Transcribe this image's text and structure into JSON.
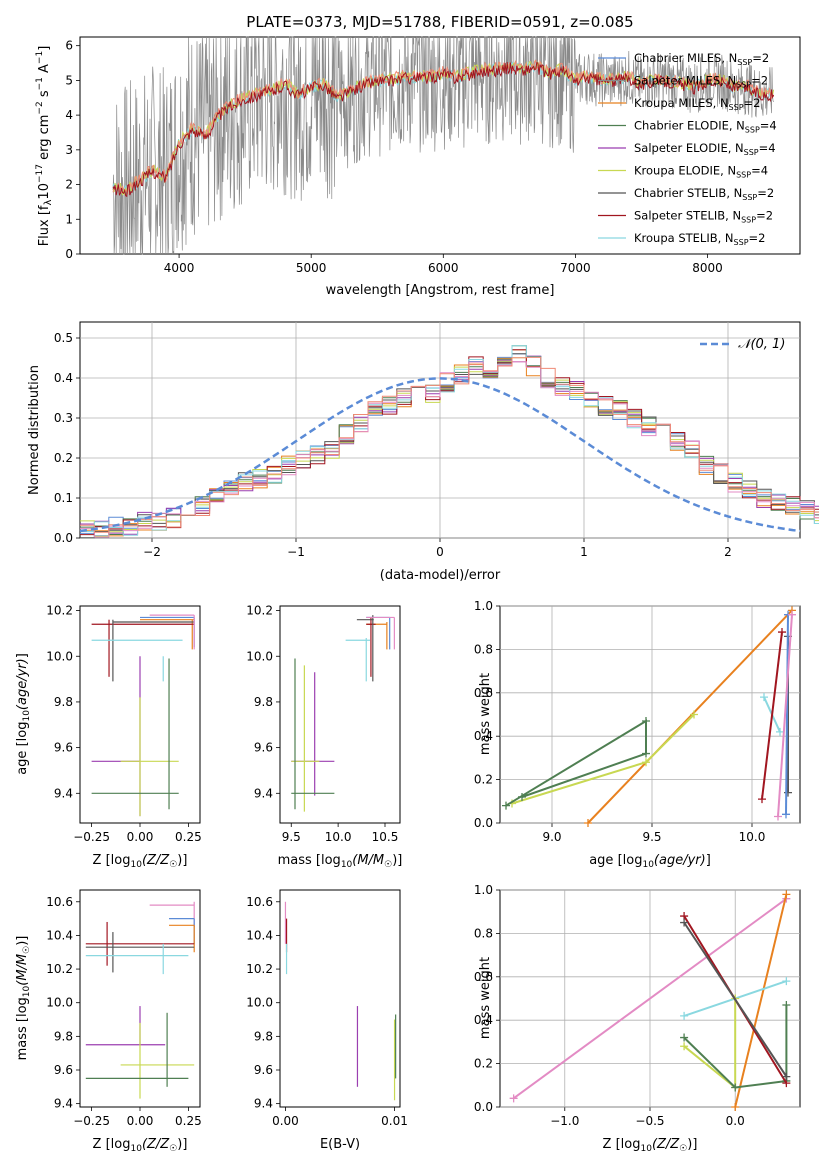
{
  "figure": {
    "title": "PLATE=0373, MJD=51788, FIBERID=0591, z=0.085"
  },
  "colors": {
    "chabrier_miles": "#5b8bd6",
    "salpeter_miles": "#8a8a8a",
    "kroupa_miles": "#e8811f",
    "chabrier_elodie": "#4f7f52",
    "salpeter_elodie": "#9b3fb0",
    "kroupa_elodie": "#c8d852",
    "chabrier_stelib": "#555555",
    "salpeter_stelib": "#a11620",
    "kroupa_stelib": "#8ad8e0",
    "pink": "#e38bc4",
    "salmon": "#ef8a75",
    "normal": "#5b8bd6"
  },
  "chart_data": [
    {
      "id": "spectrum",
      "type": "line",
      "title": "PLATE=0373, MJD=51788, FIBERID=0591, z=0.085",
      "xlabel": "wavelength [Angstrom, rest frame]",
      "ylabel": "Flux [f_λ 10^-17 erg cm^-2 s^-1 A^-1]",
      "xlim": [
        3250,
        8700
      ],
      "ylim": [
        0,
        6.25
      ],
      "xticks": [
        "4000",
        "5000",
        "6000",
        "7000",
        "8000"
      ],
      "yticks": [
        "0",
        "1",
        "2",
        "3",
        "4",
        "5",
        "6"
      ],
      "legend_position": "right",
      "legend": [
        "Chabrier MILES, N_SSP=2",
        "Salpeter MILES, N_SSP=2",
        "Kroupa MILES, N_SSP=2",
        "Chabrier ELODIE, N_SSP=4",
        "Salpeter ELODIE, N_SSP=4",
        "Kroupa ELODIE, N_SSP=4",
        "Chabrier STELIB, N_SSP=2",
        "Salpeter STELIB, N_SSP=2",
        "Kroupa STELIB, N_SSP=2"
      ],
      "data_range_x": [
        3500,
        8500
      ],
      "model_curve": {
        "x": [
          3500,
          3600,
          3700,
          3800,
          3900,
          4000,
          4100,
          4200,
          4300,
          4400,
          4500,
          4600,
          4700,
          4800,
          4900,
          5000,
          5100,
          5200,
          5300,
          5400,
          5500,
          5600,
          5700,
          5800,
          5900,
          6000,
          6100,
          6200,
          6300,
          6400,
          6500,
          6600,
          6700,
          6800,
          6900,
          7000,
          7100,
          7200,
          7300,
          7400,
          7500,
          7600,
          7700,
          7800,
          7900,
          8000,
          8100,
          8200,
          8300,
          8400
        ],
        "y": [
          1.9,
          1.8,
          2.1,
          2.4,
          2.2,
          3.2,
          3.6,
          3.4,
          4.0,
          4.3,
          4.5,
          4.6,
          4.7,
          4.9,
          4.6,
          4.8,
          4.9,
          4.5,
          4.7,
          4.9,
          5.0,
          5.0,
          5.1,
          5.1,
          5.1,
          5.2,
          5.1,
          5.2,
          5.3,
          5.3,
          5.4,
          5.3,
          5.4,
          5.2,
          5.3,
          5.0,
          5.1,
          5.0,
          5.0,
          5.1,
          4.9,
          5.0,
          5.0,
          4.9,
          4.8,
          5.0,
          5.0,
          4.8,
          4.8,
          4.6
        ]
      }
    },
    {
      "id": "residuals",
      "type": "histogram",
      "xlabel": "(data-model)/error",
      "ylabel": "Normed distribution",
      "xlim": [
        -2.5,
        2.5
      ],
      "ylim": [
        0,
        0.54
      ],
      "xticks": [
        "−2",
        "−1",
        "0",
        "1",
        "2"
      ],
      "yticks": [
        "0.0",
        "0.1",
        "0.2",
        "0.3",
        "0.4",
        "0.5"
      ],
      "grid": true,
      "legend_position": "top-right",
      "legend": [
        "𝒩(0, 1)"
      ],
      "bin_width": 0.1,
      "bin_start": -2.5,
      "hist_values": [
        0.02,
        0.02,
        0.03,
        0.03,
        0.04,
        0.04,
        0.05,
        0.06,
        0.08,
        0.1,
        0.12,
        0.14,
        0.15,
        0.16,
        0.18,
        0.2,
        0.21,
        0.22,
        0.26,
        0.29,
        0.32,
        0.33,
        0.35,
        0.37,
        0.36,
        0.39,
        0.41,
        0.43,
        0.42,
        0.44,
        0.46,
        0.43,
        0.4,
        0.38,
        0.37,
        0.35,
        0.33,
        0.32,
        0.3,
        0.28,
        0.26,
        0.24,
        0.22,
        0.18,
        0.16,
        0.14,
        0.12,
        0.1,
        0.09,
        0.08,
        0.07,
        0.06,
        0.06,
        0.05,
        0.04,
        0.04,
        0.03,
        0.03,
        0.03,
        0.02
      ]
    },
    {
      "id": "age_vs_Z",
      "type": "scatter",
      "xlabel": "Z [log10(Z/Z☉)]",
      "ylabel": "age [log10(age/yr)]",
      "xlim": [
        -0.31,
        0.31
      ],
      "ylim": [
        9.27,
        10.22
      ],
      "xticks": [
        "−0.25",
        "0.00",
        "0.25"
      ],
      "yticks": [
        "9.4",
        "9.6",
        "9.8",
        "10.0",
        "10.2"
      ]
    },
    {
      "id": "age_vs_mass",
      "type": "scatter",
      "xlabel": "mass [log10(M/M☉)]",
      "ylabel": "",
      "xlim": [
        9.38,
        10.66
      ],
      "ylim": [
        9.27,
        10.22
      ],
      "xticks": [
        "9.5",
        "10.0",
        "10.5"
      ],
      "yticks": [
        "9.4",
        "9.6",
        "9.8",
        "10.0",
        "10.2"
      ]
    },
    {
      "id": "weight_vs_age",
      "type": "line",
      "xlabel": "age [log10(age/yr)]",
      "ylabel": "mass weight",
      "xlim": [
        8.74,
        10.24
      ],
      "ylim": [
        0,
        1.0
      ],
      "xticks": [
        "9.0",
        "9.5",
        "10.0"
      ],
      "yticks": [
        "0.0",
        "0.2",
        "0.4",
        "0.6",
        "0.8",
        "1.0"
      ],
      "grid": true
    },
    {
      "id": "mass_vs_Z",
      "type": "scatter",
      "xlabel": "Z [log10(Z/Z☉)]",
      "ylabel": "mass [log10(M/M☉)]",
      "xlim": [
        -0.31,
        0.31
      ],
      "ylim": [
        9.38,
        10.67
      ],
      "xticks": [
        "−0.25",
        "0.00",
        "0.25"
      ],
      "yticks": [
        "9.4",
        "9.6",
        "9.8",
        "10.0",
        "10.2",
        "10.4",
        "10.6"
      ]
    },
    {
      "id": "mass_vs_ebv",
      "type": "scatter",
      "xlabel": "E(B-V)",
      "ylabel": "",
      "xlim": [
        -0.0005,
        0.0105
      ],
      "ylim": [
        9.38,
        10.67
      ],
      "xticks": [
        "0.00",
        "0.01"
      ],
      "yticks": [
        "9.4",
        "9.6",
        "9.8",
        "10.0",
        "10.2",
        "10.4",
        "10.6"
      ]
    },
    {
      "id": "weight_vs_Z",
      "type": "line",
      "xlabel": "Z [log10(Z/Z☉)]",
      "ylabel": "mass weight",
      "xlim": [
        -1.38,
        0.38
      ],
      "ylim": [
        0,
        1.0
      ],
      "xticks": [
        "−1.0",
        "−0.5",
        "0.0"
      ],
      "yticks": [
        "0.0",
        "0.2",
        "0.4",
        "0.6",
        "0.8",
        "1.0"
      ],
      "grid": true
    }
  ]
}
